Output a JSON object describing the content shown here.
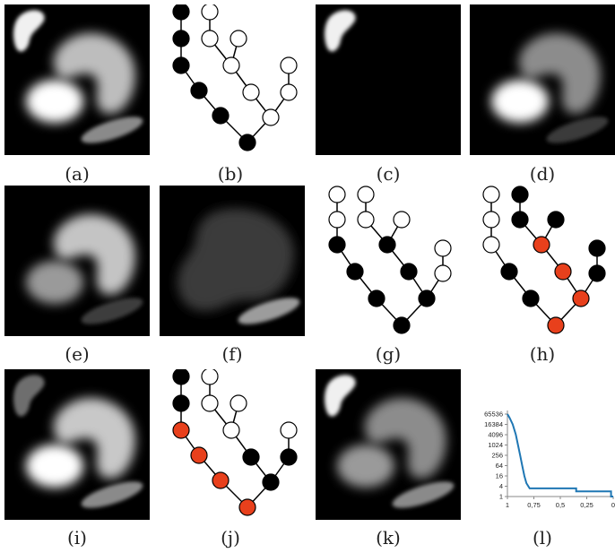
{
  "captions": [
    "(a)",
    "(b)",
    "(c)",
    "(d)",
    "(e)",
    "(f)",
    "(g)",
    "(h)",
    "(i)",
    "(j)",
    "(k)",
    "(l)"
  ],
  "colors": {
    "black_node": "#000000",
    "white_node": "#ffffff",
    "red_node": "#e8401c",
    "curve": "#1f77b4"
  },
  "chart_data": {
    "type": "line",
    "x_ticks": [
      "1",
      "0,75",
      "0,5",
      "0,25",
      "0"
    ],
    "y_ticks": [
      "1",
      "4",
      "16",
      "64",
      "256",
      "1024",
      "4096",
      "16384",
      "65536"
    ],
    "y_scale": "log2",
    "x_reversed": true,
    "series": [
      {
        "x": [
          1,
          0.98,
          0.95,
          0.92,
          0.9,
          0.88,
          0.86,
          0.84,
          0.82,
          0.79,
          0.79,
          0.7,
          0.7,
          0.35,
          0.35,
          0.02,
          0.02,
          0
        ],
        "y": [
          65536,
          40000,
          16384,
          4096,
          1024,
          256,
          64,
          16,
          6,
          3,
          3,
          3,
          3,
          3,
          2,
          2,
          1,
          1
        ]
      }
    ]
  }
}
